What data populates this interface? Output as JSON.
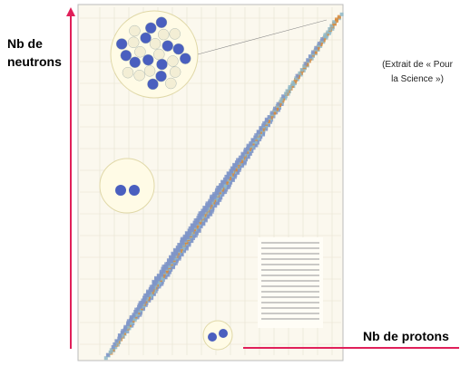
{
  "y_label_lines": [
    "Nb de",
    "neutrons"
  ],
  "x_label": "Nb de protons",
  "caption_lines": [
    "(Extrait de « Pour",
    "la Science »)"
  ]
}
